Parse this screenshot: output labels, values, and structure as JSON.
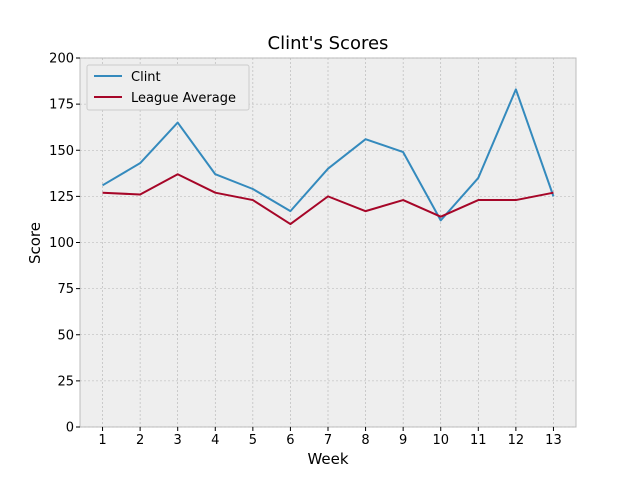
{
  "chart_data": {
    "type": "line",
    "title": "Clint's Scores",
    "xlabel": "Week",
    "ylabel": "Score",
    "x": [
      1,
      2,
      3,
      4,
      5,
      6,
      7,
      8,
      9,
      10,
      11,
      12,
      13
    ],
    "xlim": [
      0.4,
      13.6
    ],
    "ylim": [
      0,
      200
    ],
    "yticks": [
      0,
      25,
      50,
      75,
      100,
      125,
      150,
      175,
      200
    ],
    "grid": true,
    "legend": "upper-left",
    "series": [
      {
        "name": "Clint",
        "color": "#348ABD",
        "values": [
          131,
          143,
          165,
          137,
          129,
          117,
          140,
          156,
          149,
          112,
          135,
          183,
          125
        ]
      },
      {
        "name": "League Average",
        "color": "#A60628",
        "values": [
          127,
          126,
          137,
          127,
          123,
          110,
          125,
          117,
          123,
          114,
          123,
          123,
          127
        ]
      }
    ]
  }
}
